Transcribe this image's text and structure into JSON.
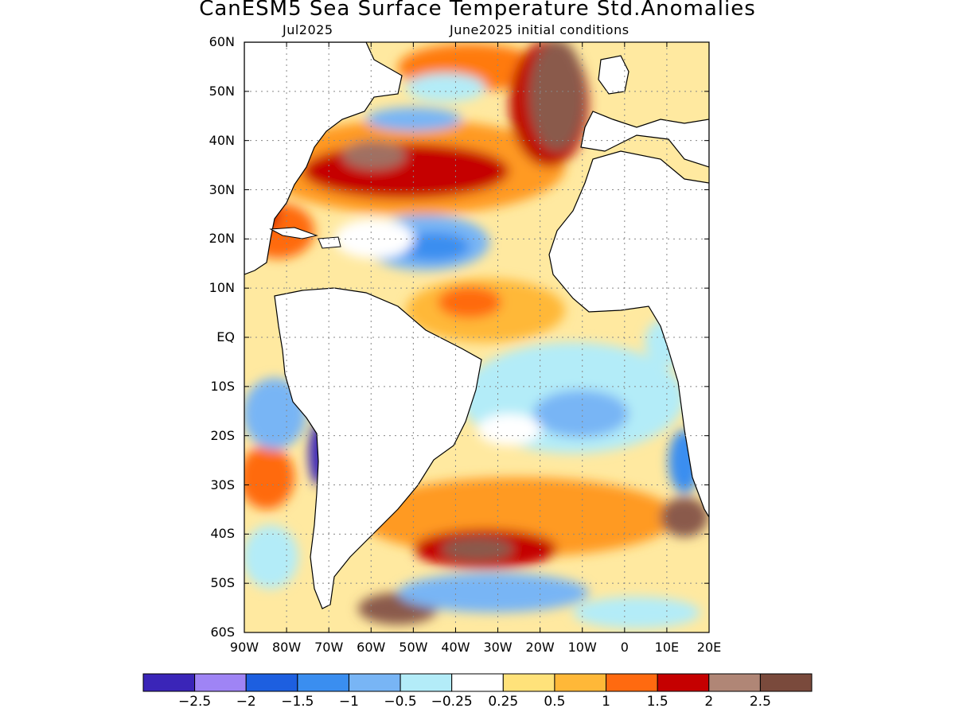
{
  "title": "CanESM5 Sea Surface Temperature Std.Anomalies",
  "subtitle_left": "Jul2025",
  "subtitle_right": "June2025 initial conditions",
  "lat_labels": [
    "60N",
    "50N",
    "40N",
    "30N",
    "20N",
    "10N",
    "EQ",
    "10S",
    "20S",
    "30S",
    "40S",
    "50S",
    "60S"
  ],
  "lon_labels": [
    "90W",
    "80W",
    "70W",
    "60W",
    "50W",
    "40W",
    "30W",
    "20W",
    "10W",
    "0",
    "10E",
    "20E"
  ],
  "colorbar": {
    "colors": [
      "#3a25b8",
      "#9f84f5",
      "#1d5fe0",
      "#3a8ef0",
      "#78b5f5",
      "#b3ecf8",
      "#ffffff",
      "#ffe27a",
      "#ffb838",
      "#ff6a10",
      "#c50000",
      "#b08676",
      "#7a4a3c"
    ],
    "labels": [
      "−2.5",
      "−2",
      "−1.5",
      "−1",
      "−0.5",
      "−0.25",
      "0.25",
      "0.5",
      "1",
      "1.5",
      "2",
      "2.5"
    ]
  },
  "land_color": "#ffffff",
  "coast_color": "#000000"
}
